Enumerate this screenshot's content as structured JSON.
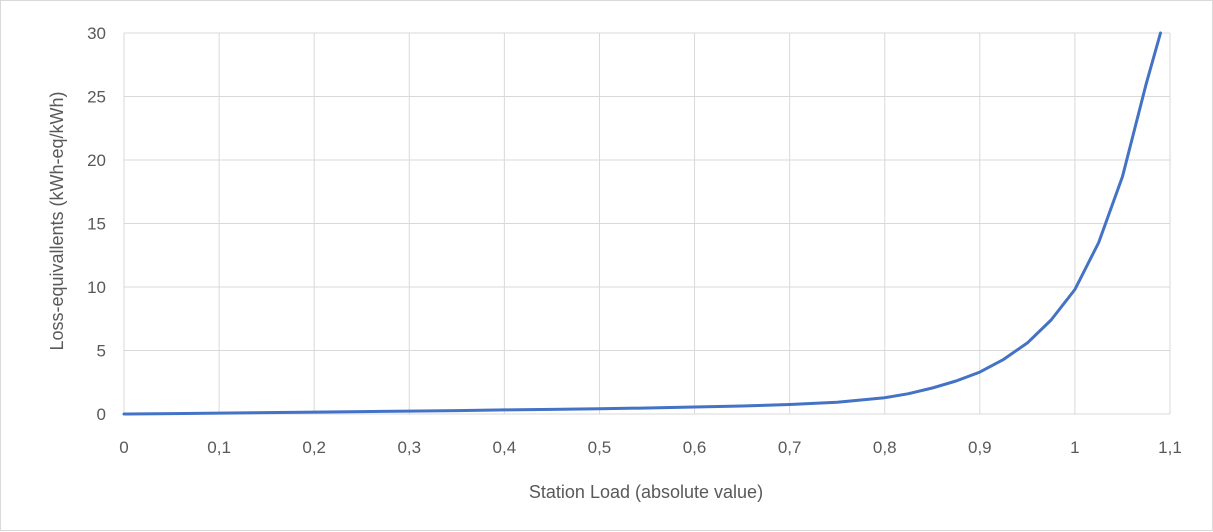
{
  "chart_data": {
    "type": "line",
    "title": "",
    "xlabel": "Station Load (absolute value)",
    "ylabel": "Loss-equivallents (kWh-eq/kWh)",
    "xlim": [
      0,
      1.1
    ],
    "ylim": [
      0,
      30
    ],
    "x_ticks": [
      0,
      0.1,
      0.2,
      0.3,
      0.4,
      0.5,
      0.6,
      0.7,
      0.8,
      0.9,
      1,
      1.1
    ],
    "x_tick_labels": [
      "0",
      "0,1",
      "0,2",
      "0,3",
      "0,4",
      "0,5",
      "0,6",
      "0,7",
      "0,8",
      "0,9",
      "1",
      "1,1"
    ],
    "y_ticks": [
      0,
      5,
      10,
      15,
      20,
      25,
      30
    ],
    "y_tick_labels": [
      "0",
      "5",
      "10",
      "15",
      "20",
      "25",
      "30"
    ],
    "grid": true,
    "legend": "none",
    "series": [
      {
        "color": "#4472c4",
        "x": [
          0,
          0.05,
          0.1,
          0.15,
          0.2,
          0.25,
          0.3,
          0.35,
          0.4,
          0.45,
          0.5,
          0.55,
          0.6,
          0.65,
          0.7,
          0.75,
          0.8,
          0.825,
          0.85,
          0.875,
          0.9,
          0.925,
          0.95,
          0.975,
          1.0,
          1.025,
          1.05,
          1.075,
          1.09
        ],
        "y": [
          0.0,
          0.03,
          0.07,
          0.11,
          0.15,
          0.19,
          0.23,
          0.27,
          0.32,
          0.36,
          0.41,
          0.47,
          0.55,
          0.63,
          0.75,
          0.93,
          1.28,
          1.6,
          2.05,
          2.6,
          3.3,
          4.3,
          5.6,
          7.4,
          9.8,
          13.5,
          18.7,
          26.0,
          30.0
        ]
      }
    ]
  }
}
